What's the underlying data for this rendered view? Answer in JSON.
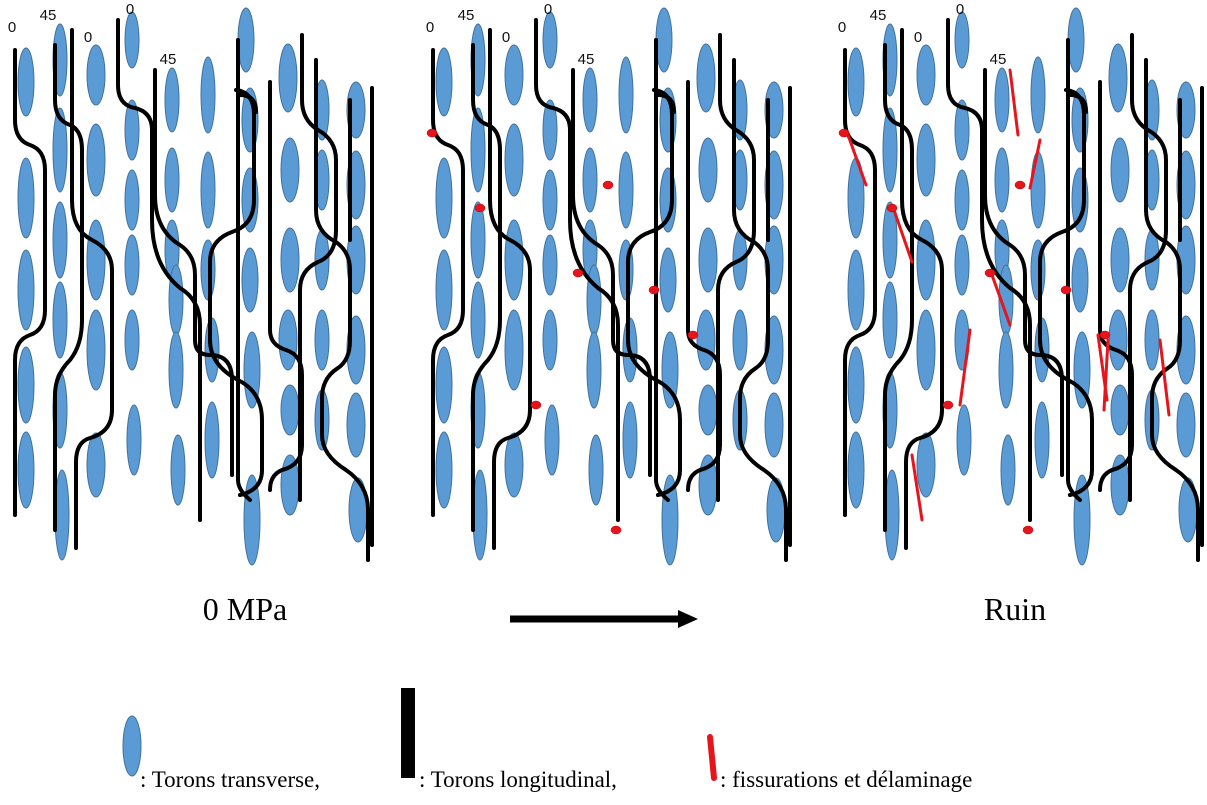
{
  "ply_labels": [
    "0",
    "45",
    "0",
    "0",
    "45"
  ],
  "panels": [
    {
      "id": "initial",
      "has_dots": false,
      "has_cracks": false
    },
    {
      "id": "intermediate",
      "has_dots": true,
      "has_cracks": false
    },
    {
      "id": "ruin",
      "has_dots": true,
      "has_cracks": true
    }
  ],
  "captions": {
    "left": "0 MPa",
    "right": "Ruin"
  },
  "legend": {
    "transverse": ": Torons transverse,",
    "longitudinal": ": Torons longitudinal,",
    "cracks": ": fissurations et délaminage"
  },
  "colors": {
    "tow": "#5b9bd5",
    "longitudinal": "#000000",
    "damage": "#e8141b"
  }
}
